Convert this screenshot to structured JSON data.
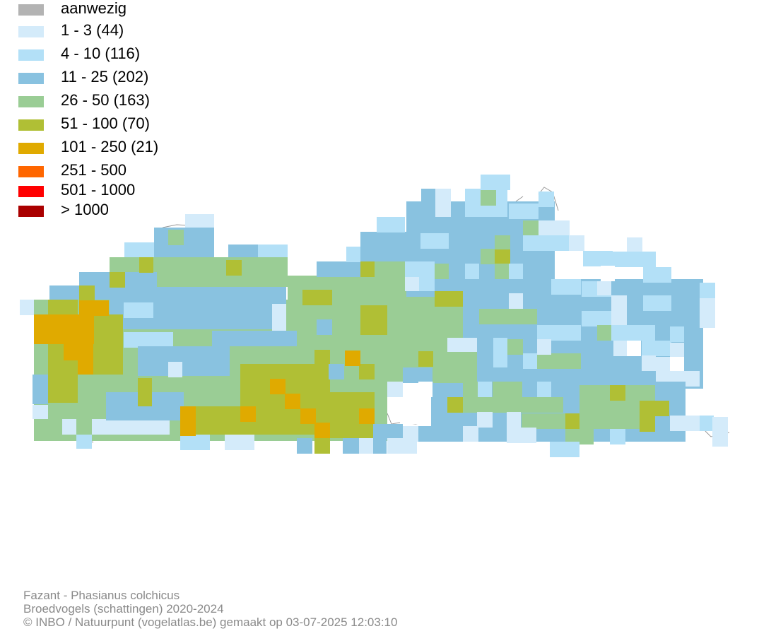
{
  "legend": {
    "items": [
      {
        "label": "aanwezig",
        "color": "#b3b3b3"
      },
      {
        "label": "1 - 3 (44)",
        "color": "#d4ebfa"
      },
      {
        "label": "4 - 10 (116)",
        "color": "#b3e0f7"
      },
      {
        "label": "11 - 25 (202)",
        "color": "#89c2e0"
      },
      {
        "label": "26 - 50 (163)",
        "color": "#9acd95"
      },
      {
        "label": "51 - 100 (70)",
        "color": "#b0bf35"
      },
      {
        "label": "101 - 250 (21)",
        "color": "#e0aa00"
      },
      {
        "label": "251 - 500",
        "color": "#ff6600"
      },
      {
        "label": "501 - 1000",
        "color": "#ff0000"
      },
      {
        "label": "> 1000",
        "color": "#aa0000"
      }
    ]
  },
  "footer": {
    "species": "Fazant - Phasianus colchicus",
    "dataset": "Broedvogels (schattingen) 2020-2024",
    "credit": "© INBO / Natuurpunt (vogelatlas.be) gemaakt op 03-07-2025 12:03:10"
  }
}
